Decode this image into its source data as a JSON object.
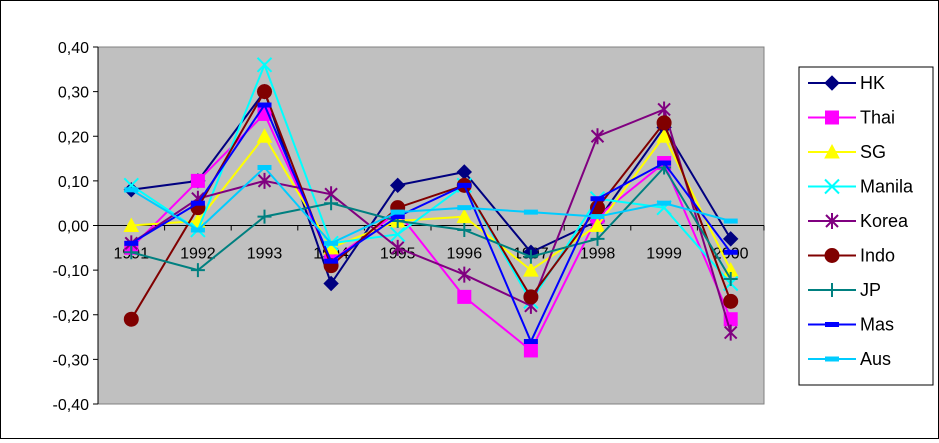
{
  "chart_data": {
    "type": "line",
    "title": "",
    "xlabel": "",
    "ylabel": "",
    "categories": [
      "1991",
      "1992",
      "1993",
      "1994",
      "1995",
      "1996",
      "1997",
      "1998",
      "1999",
      "2000"
    ],
    "ylim": [
      -0.4,
      0.4
    ],
    "yticks": [
      "0,40",
      "0,30",
      "0,20",
      "0,10",
      "0,00",
      "-0,10",
      "-0,20",
      "-0,30",
      "-0,40"
    ],
    "grid": false,
    "plot_background": "#c0c0c0",
    "legend_position": "right",
    "series": [
      {
        "name": "HK",
        "color": "#000080",
        "marker": "diamond",
        "values": [
          0.08,
          0.1,
          0.3,
          -0.13,
          0.09,
          0.12,
          -0.06,
          0.01,
          0.22,
          -0.03
        ]
      },
      {
        "name": "Thai",
        "color": "#ff00ff",
        "marker": "square",
        "values": [
          -0.05,
          0.1,
          0.25,
          -0.08,
          0.03,
          -0.16,
          -0.28,
          0.02,
          0.14,
          -0.21
        ]
      },
      {
        "name": "SG",
        "color": "#ffff00",
        "marker": "triangle",
        "values": [
          0.0,
          0.01,
          0.2,
          -0.05,
          0.01,
          0.02,
          -0.1,
          0.0,
          0.2,
          -0.1
        ]
      },
      {
        "name": "Manila",
        "color": "#00ffff",
        "marker": "x",
        "values": [
          0.09,
          -0.01,
          0.36,
          -0.04,
          -0.02,
          0.09,
          -0.17,
          0.06,
          0.04,
          -0.13
        ]
      },
      {
        "name": "Korea",
        "color": "#800080",
        "marker": "star",
        "values": [
          -0.04,
          0.06,
          0.1,
          0.07,
          -0.05,
          -0.11,
          -0.18,
          0.2,
          0.26,
          -0.24
        ]
      },
      {
        "name": "Indo",
        "color": "#800000",
        "marker": "circle",
        "values": [
          -0.21,
          0.04,
          0.3,
          -0.09,
          0.04,
          0.09,
          -0.16,
          0.04,
          0.23,
          -0.17
        ]
      },
      {
        "name": "JP",
        "color": "#008080",
        "marker": "plus",
        "values": [
          -0.06,
          -0.1,
          0.02,
          0.05,
          0.01,
          -0.01,
          -0.07,
          -0.03,
          0.13,
          -0.12
        ]
      },
      {
        "name": "Mas",
        "color": "#0000ff",
        "marker": "dash",
        "values": [
          -0.04,
          0.05,
          0.27,
          -0.08,
          0.02,
          0.09,
          -0.26,
          0.06,
          0.14,
          -0.06
        ]
      },
      {
        "name": "Aus",
        "color": "#00ccff",
        "marker": "dash",
        "values": [
          0.08,
          -0.01,
          0.13,
          -0.04,
          0.03,
          0.04,
          0.03,
          0.02,
          0.05,
          0.01
        ]
      }
    ]
  }
}
